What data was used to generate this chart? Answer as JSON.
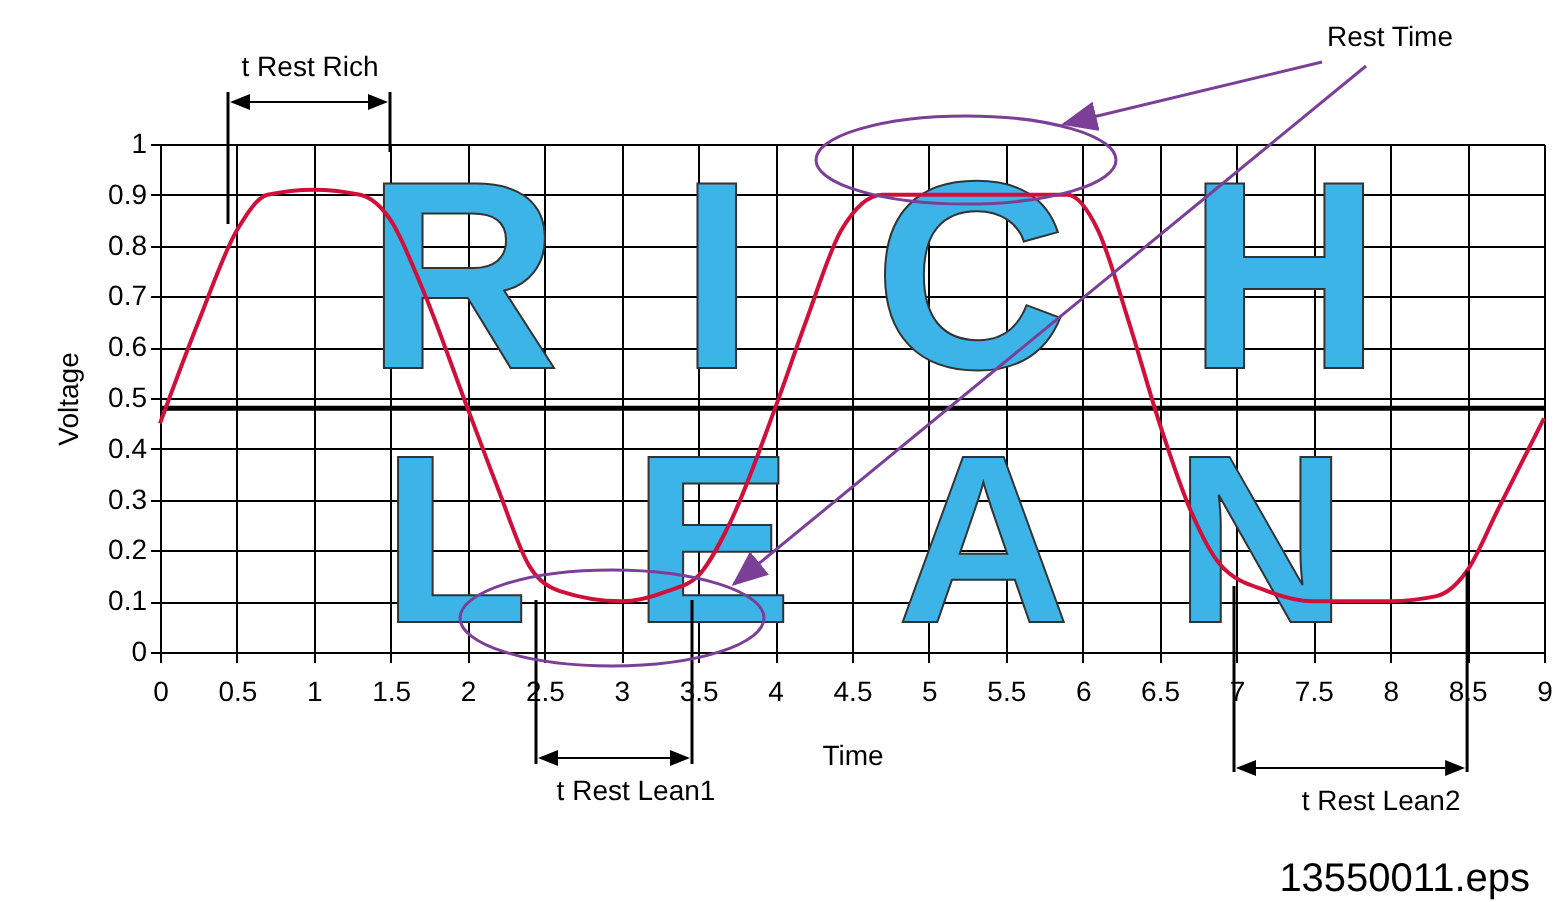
{
  "chart_data": {
    "type": "line",
    "xlabel": "Time",
    "ylabel": "Voltage",
    "x": [
      0,
      0.25,
      0.5,
      0.7,
      1.0,
      1.3,
      1.5,
      1.7,
      2.0,
      2.2,
      2.4,
      2.6,
      3.0,
      3.3,
      3.5,
      3.7,
      4.0,
      4.2,
      4.43,
      4.7,
      5.0,
      5.5,
      5.9,
      6.1,
      6.3,
      6.5,
      6.7,
      6.9,
      7.2,
      7.5,
      8.0,
      8.3,
      8.5,
      8.7,
      9.0
    ],
    "series": [
      {
        "color": "#d0103a",
        "values": [
          0.45,
          0.65,
          0.83,
          0.9,
          0.91,
          0.9,
          0.85,
          0.72,
          0.48,
          0.32,
          0.17,
          0.12,
          0.1,
          0.12,
          0.15,
          0.25,
          0.48,
          0.65,
          0.83,
          0.9,
          0.9,
          0.9,
          0.9,
          0.83,
          0.65,
          0.45,
          0.28,
          0.17,
          0.12,
          0.1,
          0.1,
          0.11,
          0.16,
          0.28,
          0.46
        ]
      }
    ],
    "xlim": [
      0,
      9
    ],
    "xticks": [
      0,
      0.5,
      1,
      1.5,
      2,
      2.5,
      3,
      3.5,
      4,
      4.5,
      5,
      5.5,
      6,
      6.5,
      7,
      7.5,
      8,
      8.5,
      9
    ],
    "ylim": [
      0,
      1
    ],
    "yticks": [
      0,
      0.1,
      0.2,
      0.3,
      0.4,
      0.5,
      0.6,
      0.7,
      0.8,
      0.9,
      1
    ],
    "grid": true,
    "marker": "none",
    "line_style": "solid",
    "ref_lines": [
      {
        "axis": "y",
        "value": 0.48,
        "color": "#000000"
      }
    ],
    "annotations": [
      "t Rest Rich",
      "Rest Time",
      "t Rest Lean1",
      {
        "text": "t Rest Lean2",
        "x": 8.5,
        "y": 0.16
      },
      "RICH",
      "LEAN",
      "13550011.eps"
    ]
  }
}
